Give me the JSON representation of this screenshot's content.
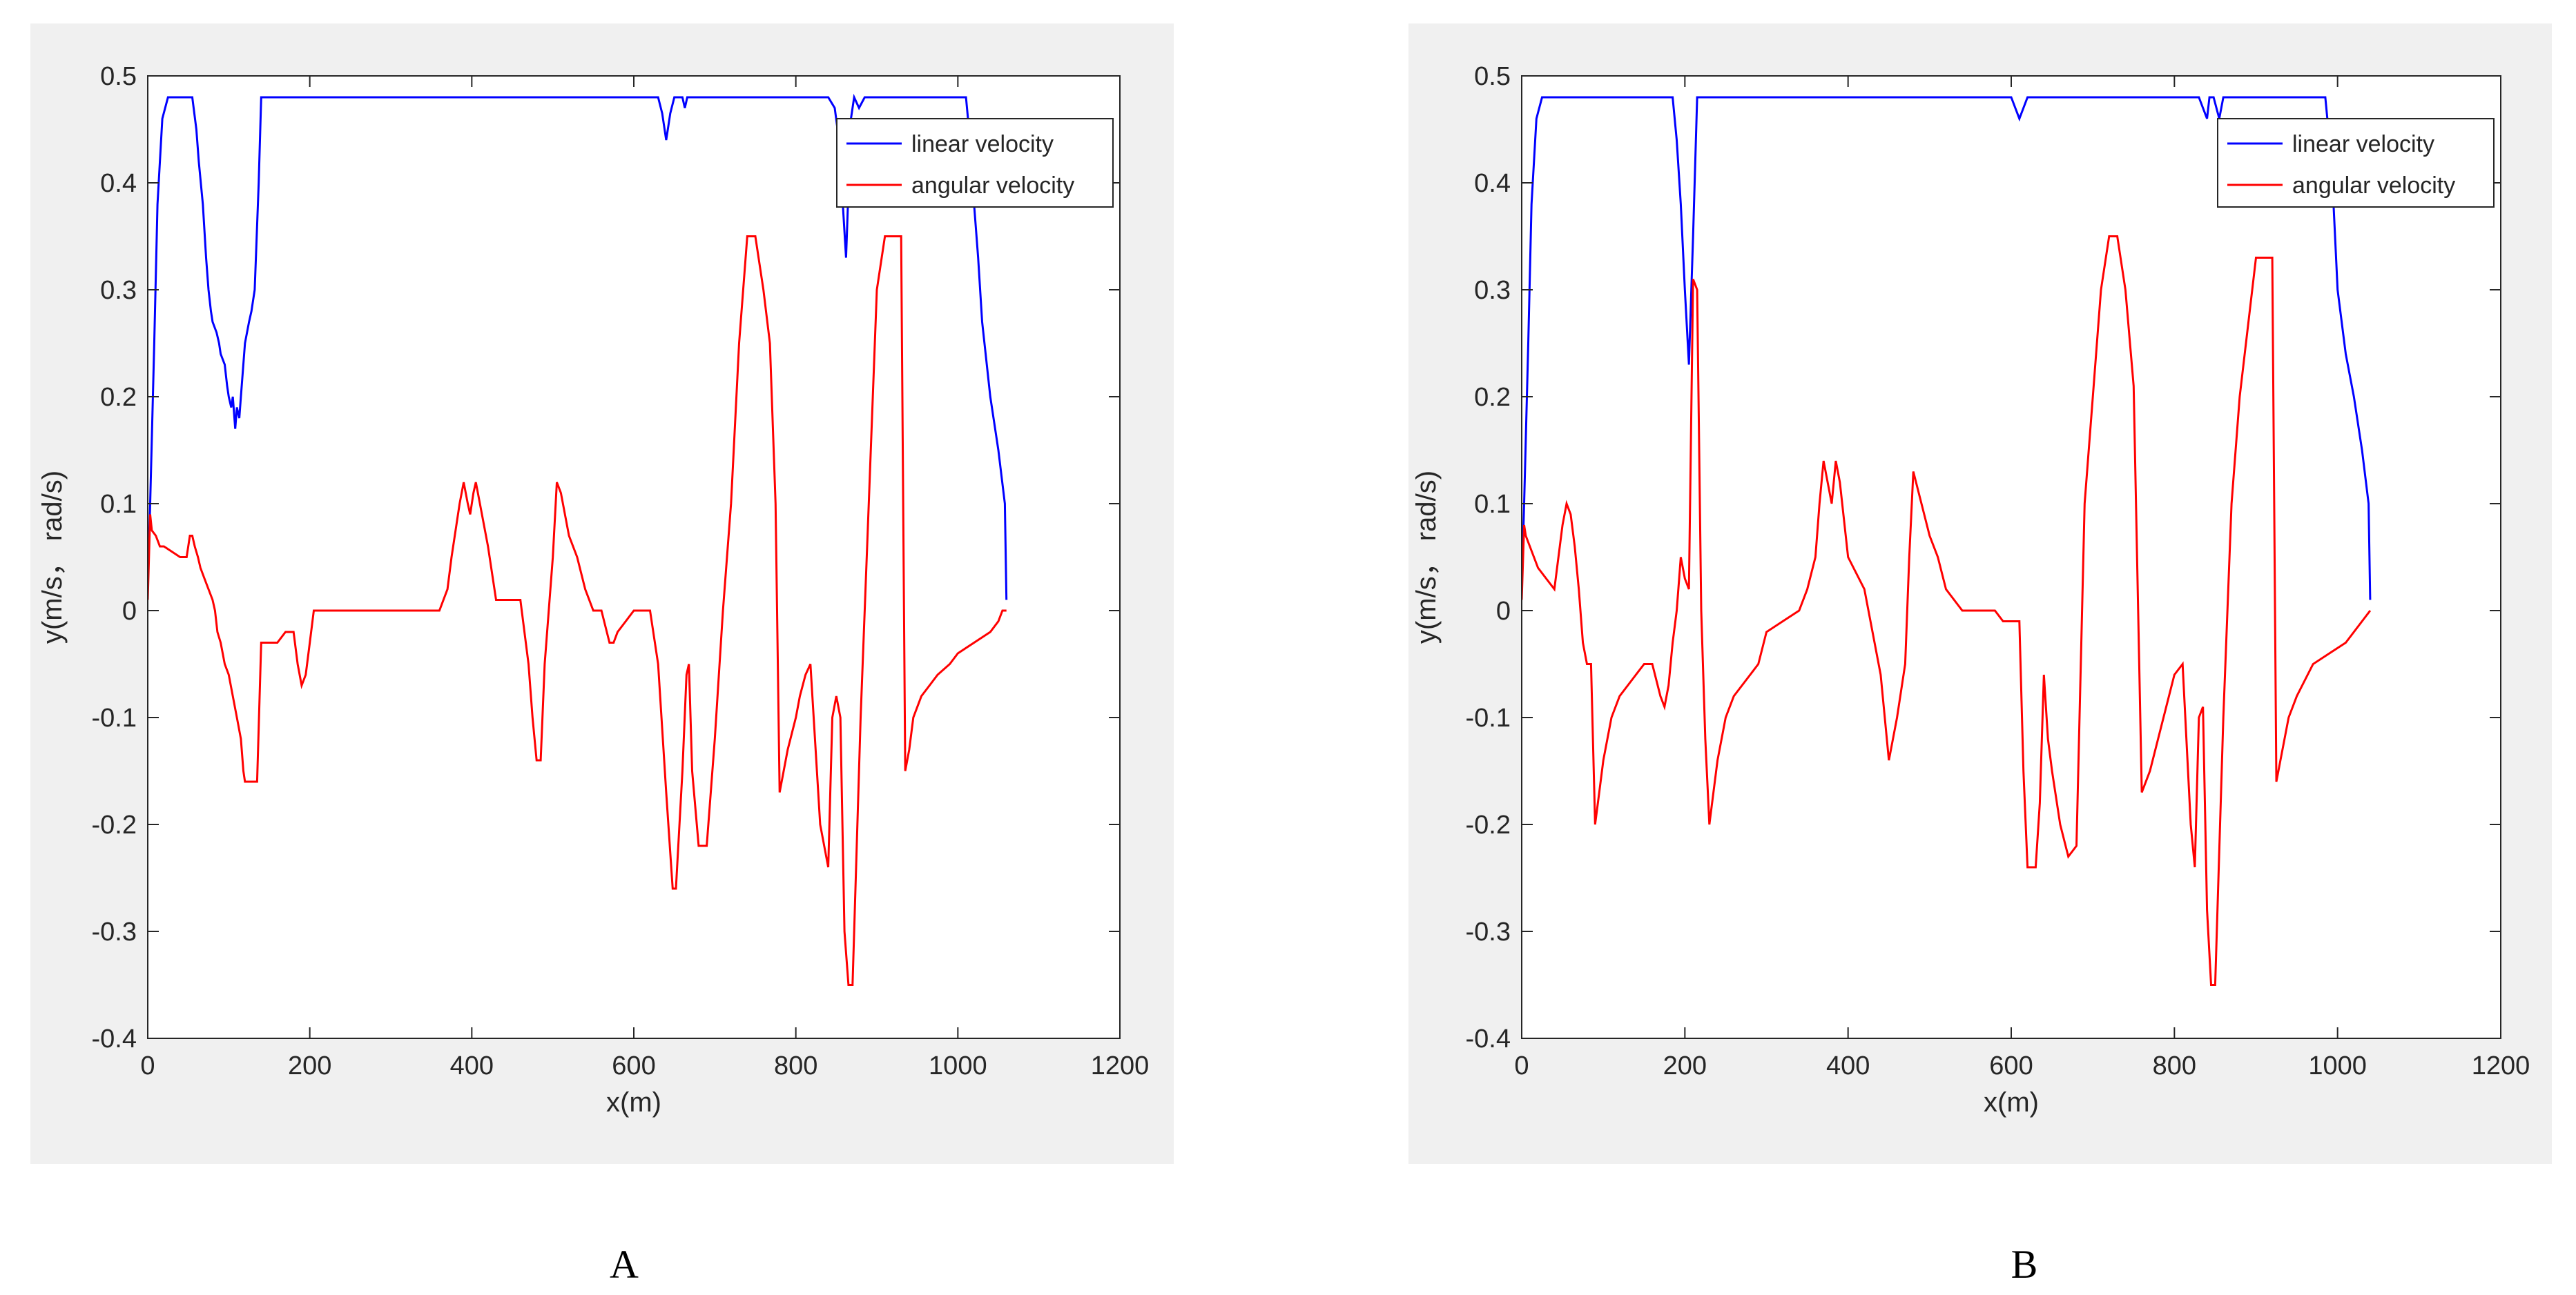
{
  "chart_data": [
    {
      "type": "line",
      "panel_label": "A",
      "xlabel": "x(m)",
      "ylabel": "y(m/s， rad/s)",
      "xlim": [
        0,
        1200
      ],
      "ylim": [
        -0.4,
        0.5
      ],
      "xticks": [
        0,
        200,
        400,
        600,
        800,
        1000,
        1200
      ],
      "yticks": [
        -0.4,
        -0.3,
        -0.2,
        -0.1,
        0,
        0.1,
        0.2,
        0.3,
        0.4,
        0.5
      ],
      "grid": false,
      "legend": "top-right",
      "series": [
        {
          "name": "linear velocity",
          "color": "#0000ff",
          "x": [
            0,
            3,
            8,
            12,
            18,
            25,
            55,
            60,
            63,
            68,
            72,
            75,
            78,
            80,
            85,
            88,
            90,
            95,
            98,
            100,
            103,
            105,
            108,
            110,
            113,
            115,
            120,
            125,
            128,
            132,
            137,
            140,
            400,
            630,
            635,
            640,
            645,
            650,
            660,
            663,
            666,
            670,
            840,
            848,
            855,
            858,
            862,
            868,
            872,
            878,
            885,
            900,
            1010,
            1015,
            1020,
            1025,
            1030,
            1040,
            1050,
            1058,
            1060
          ],
          "y": [
            0.02,
            0.1,
            0.25,
            0.38,
            0.46,
            0.48,
            0.48,
            0.45,
            0.42,
            0.38,
            0.33,
            0.3,
            0.28,
            0.27,
            0.26,
            0.25,
            0.24,
            0.23,
            0.21,
            0.2,
            0.19,
            0.2,
            0.17,
            0.19,
            0.18,
            0.2,
            0.25,
            0.27,
            0.28,
            0.3,
            0.4,
            0.48,
            0.48,
            0.48,
            0.465,
            0.44,
            0.465,
            0.48,
            0.48,
            0.47,
            0.48,
            0.48,
            0.48,
            0.47,
            0.43,
            0.38,
            0.33,
            0.46,
            0.48,
            0.47,
            0.48,
            0.48,
            0.48,
            0.44,
            0.38,
            0.33,
            0.27,
            0.2,
            0.15,
            0.1,
            0.01
          ]
        },
        {
          "name": "angular velocity",
          "color": "#ff0000",
          "x": [
            0,
            3,
            5,
            10,
            15,
            20,
            30,
            40,
            48,
            52,
            55,
            58,
            62,
            65,
            70,
            75,
            80,
            83,
            86,
            90,
            95,
            100,
            105,
            110,
            115,
            118,
            120,
            128,
            135,
            140,
            150,
            160,
            170,
            180,
            185,
            190,
            195,
            200,
            205,
            210,
            300,
            320,
            340,
            360,
            370,
            375,
            385,
            390,
            395,
            398,
            402,
            405,
            410,
            420,
            430,
            440,
            460,
            470,
            475,
            480,
            485,
            490,
            500,
            505,
            510,
            520,
            530,
            540,
            550,
            560,
            570,
            575,
            580,
            590,
            600,
            620,
            630,
            640,
            648,
            652,
            660,
            665,
            668,
            672,
            680,
            690,
            700,
            710,
            720,
            730,
            740,
            750,
            760,
            768,
            775,
            780,
            790,
            800,
            805,
            812,
            818,
            830,
            840,
            845,
            850,
            855,
            860,
            865,
            870,
            880,
            890,
            900,
            910,
            920,
            925,
            930,
            935,
            940,
            945,
            955,
            965,
            975,
            990,
            1000,
            1020,
            1040,
            1050,
            1055,
            1060
          ],
          "y": [
            0.01,
            0.09,
            0.075,
            0.07,
            0.06,
            0.06,
            0.055,
            0.05,
            0.05,
            0.07,
            0.07,
            0.06,
            0.05,
            0.04,
            0.03,
            0.02,
            0.01,
            0,
            -0.02,
            -0.03,
            -0.05,
            -0.06,
            -0.08,
            -0.1,
            -0.12,
            -0.15,
            -0.16,
            -0.16,
            -0.16,
            -0.03,
            -0.03,
            -0.03,
            -0.02,
            -0.02,
            -0.05,
            -0.07,
            -0.06,
            -0.03,
            0,
            0,
            0,
            0,
            0,
            0,
            0.02,
            0.05,
            0.1,
            0.12,
            0.1,
            0.09,
            0.11,
            0.12,
            0.1,
            0.06,
            0.01,
            0.01,
            0.01,
            -0.05,
            -0.1,
            -0.14,
            -0.14,
            -0.05,
            0.05,
            0.12,
            0.11,
            0.07,
            0.05,
            0.02,
            0,
            0,
            -0.03,
            -0.03,
            -0.02,
            -0.01,
            0,
            0,
            -0.05,
            -0.17,
            -0.26,
            -0.26,
            -0.15,
            -0.06,
            -0.05,
            -0.15,
            -0.22,
            -0.22,
            -0.12,
            0,
            0.1,
            0.25,
            0.35,
            0.35,
            0.3,
            0.25,
            0.1,
            -0.17,
            -0.13,
            -0.1,
            -0.08,
            -0.06,
            -0.05,
            -0.2,
            -0.24,
            -0.1,
            -0.08,
            -0.1,
            -0.3,
            -0.35,
            -0.35,
            -0.1,
            0.1,
            0.3,
            0.35,
            0.35,
            0.35,
            0.35,
            -0.15,
            -0.13,
            -0.1,
            -0.08,
            -0.07,
            -0.06,
            -0.05,
            -0.04,
            -0.03,
            -0.02,
            -0.01,
            0,
            0
          ]
        }
      ]
    },
    {
      "type": "line",
      "panel_label": "B",
      "xlabel": "x(m)",
      "ylabel": "y(m/s， rad/s)",
      "xlim": [
        0,
        1200
      ],
      "ylim": [
        -0.4,
        0.5
      ],
      "xticks": [
        0,
        200,
        400,
        600,
        800,
        1000,
        1200
      ],
      "yticks": [
        -0.4,
        -0.3,
        -0.2,
        -0.1,
        0,
        0.1,
        0.2,
        0.3,
        0.4,
        0.5
      ],
      "grid": false,
      "legend": "top-right",
      "series": [
        {
          "name": "linear velocity",
          "color": "#0000ff",
          "x": [
            0,
            3,
            8,
            12,
            18,
            25,
            185,
            190,
            195,
            200,
            205,
            210,
            215,
            600,
            605,
            610,
            615,
            620,
            830,
            835,
            840,
            843,
            848,
            855,
            860,
            985,
            990,
            995,
            1000,
            1010,
            1020,
            1030,
            1038,
            1040
          ],
          "y": [
            0.02,
            0.1,
            0.25,
            0.38,
            0.46,
            0.48,
            0.48,
            0.44,
            0.38,
            0.3,
            0.23,
            0.35,
            0.48,
            0.48,
            0.47,
            0.46,
            0.47,
            0.48,
            0.48,
            0.47,
            0.46,
            0.48,
            0.48,
            0.46,
            0.48,
            0.48,
            0.44,
            0.38,
            0.3,
            0.24,
            0.2,
            0.15,
            0.1,
            0.01
          ]
        },
        {
          "name": "angular velocity",
          "color": "#ff0000",
          "x": [
            0,
            3,
            5,
            10,
            15,
            20,
            30,
            40,
            50,
            55,
            60,
            65,
            70,
            75,
            80,
            85,
            90,
            95,
            100,
            110,
            120,
            130,
            140,
            150,
            160,
            170,
            175,
            180,
            185,
            190,
            195,
            200,
            205,
            210,
            215,
            220,
            225,
            230,
            235,
            240,
            250,
            260,
            280,
            290,
            300,
            320,
            340,
            350,
            360,
            365,
            370,
            375,
            380,
            385,
            390,
            400,
            420,
            440,
            450,
            460,
            470,
            475,
            480,
            490,
            500,
            510,
            520,
            540,
            560,
            580,
            590,
            600,
            610,
            615,
            620,
            630,
            635,
            640,
            645,
            650,
            660,
            670,
            680,
            690,
            700,
            710,
            720,
            730,
            740,
            750,
            760,
            770,
            780,
            790,
            800,
            810,
            820,
            825,
            830,
            835,
            840,
            845,
            850,
            860,
            870,
            880,
            900,
            910,
            915,
            920,
            925,
            930,
            940,
            950,
            970,
            990,
            1010,
            1020,
            1030,
            1040
          ],
          "y": [
            0.01,
            0.08,
            0.07,
            0.06,
            0.05,
            0.04,
            0.03,
            0.02,
            0.08,
            0.1,
            0.09,
            0.06,
            0.02,
            -0.03,
            -0.05,
            -0.05,
            -0.2,
            -0.17,
            -0.14,
            -0.1,
            -0.08,
            -0.07,
            -0.06,
            -0.05,
            -0.05,
            -0.08,
            -0.09,
            -0.07,
            -0.03,
            0,
            0.05,
            0.03,
            0.02,
            0.31,
            0.3,
            0,
            -0.12,
            -0.2,
            -0.17,
            -0.14,
            -0.1,
            -0.08,
            -0.06,
            -0.05,
            -0.02,
            -0.01,
            0,
            0.02,
            0.05,
            0.1,
            0.14,
            0.12,
            0.1,
            0.14,
            0.12,
            0.05,
            0.02,
            -0.06,
            -0.14,
            -0.1,
            -0.05,
            0.05,
            0.13,
            0.1,
            0.07,
            0.05,
            0.02,
            0,
            0,
            0,
            -0.01,
            -0.01,
            -0.01,
            -0.15,
            -0.24,
            -0.24,
            -0.18,
            -0.06,
            -0.12,
            -0.15,
            -0.2,
            -0.23,
            -0.22,
            0.1,
            0.2,
            0.3,
            0.35,
            0.35,
            0.3,
            0.21,
            -0.17,
            -0.15,
            -0.12,
            -0.09,
            -0.06,
            -0.05,
            -0.2,
            -0.24,
            -0.1,
            -0.09,
            -0.28,
            -0.35,
            -0.35,
            -0.1,
            0.1,
            0.2,
            0.33,
            0.33,
            0.33,
            0.33,
            -0.16,
            -0.14,
            -0.1,
            -0.08,
            -0.05,
            -0.04,
            -0.03,
            -0.02,
            -0.01,
            0
          ]
        }
      ]
    }
  ]
}
